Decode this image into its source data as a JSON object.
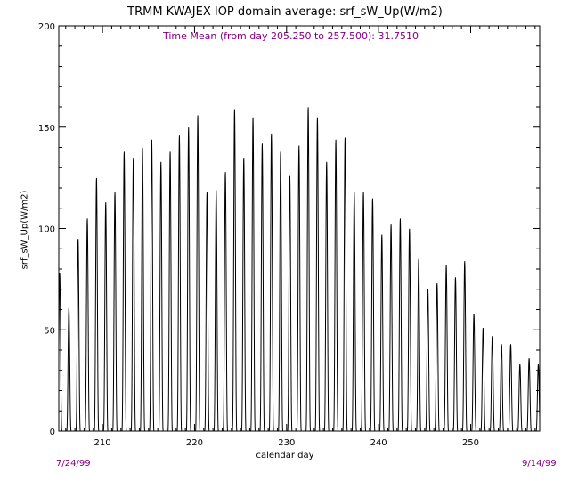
{
  "chart_data": {
    "type": "line",
    "title": "TRMM KWAJEX IOP domain average: srf_sW_Up(W/m2)",
    "annotation": "Time Mean (from day 205.250 to 257.500): 31.7510",
    "xlabel": "calendar day",
    "ylabel": "srf_sW_Up(W/m2)",
    "xlim": [
      205.25,
      257.5
    ],
    "ylim": [
      0,
      200
    ],
    "x_ticks": [
      210,
      220,
      230,
      240,
      250
    ],
    "y_ticks": [
      0,
      50,
      100,
      150,
      200
    ],
    "date_start": "7/24/99",
    "date_end": "9/14/99",
    "series": [
      {
        "sampling": "diurnal: zero at night, one daytime peak per calendar day",
        "days": [
          205,
          206,
          207,
          208,
          209,
          210,
          211,
          212,
          213,
          214,
          215,
          216,
          217,
          218,
          219,
          220,
          221,
          222,
          223,
          224,
          225,
          226,
          227,
          228,
          229,
          230,
          231,
          232,
          233,
          234,
          235,
          236,
          237,
          238,
          239,
          240,
          241,
          242,
          243,
          244,
          245,
          246,
          247,
          248,
          249,
          250,
          251,
          252,
          253,
          254,
          255,
          256,
          257
        ],
        "daily_peak": [
          78,
          61,
          95,
          105,
          125,
          113,
          118,
          138,
          135,
          140,
          144,
          133,
          138,
          146,
          150,
          156,
          118,
          119,
          128,
          159,
          135,
          155,
          142,
          147,
          138,
          126,
          141,
          160,
          155,
          133,
          144,
          145,
          118,
          118,
          115,
          97,
          102,
          105,
          100,
          85,
          70,
          73,
          82,
          76,
          84,
          58,
          51,
          47,
          43,
          43,
          33,
          36,
          33
        ]
      }
    ],
    "colors": {
      "axis": "#000000",
      "line": "#000000",
      "annotation": "#800080"
    }
  }
}
